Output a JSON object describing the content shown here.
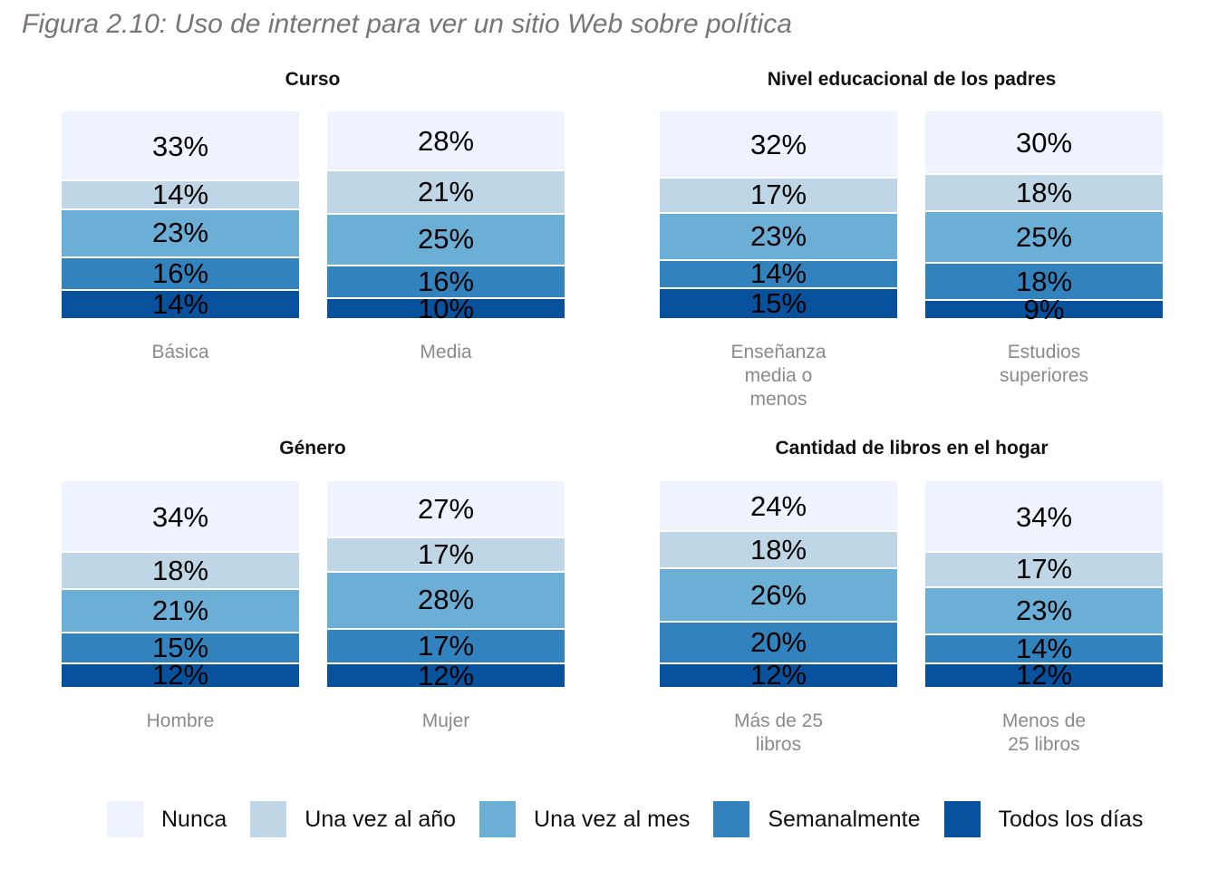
{
  "figure_title": "Figura 2.10: Uso de internet para ver un sitio Web sobre política",
  "legend": [
    {
      "label": "Nunca",
      "color": "#eef3fe"
    },
    {
      "label": "Una vez al año",
      "color": "#bfd6e6"
    },
    {
      "label": "Una vez al mes",
      "color": "#6baed6"
    },
    {
      "label": "Semanalmente",
      "color": "#3182bd"
    },
    {
      "label": "Todos los días",
      "color": "#08519c"
    }
  ],
  "chart_data": [
    {
      "type": "bar",
      "title": "Curso",
      "stacked": true,
      "categories": [
        "Básica",
        "Media"
      ],
      "series": [
        {
          "name": "Nunca",
          "values": [
            33,
            28
          ]
        },
        {
          "name": "Una vez al año",
          "values": [
            14,
            21
          ]
        },
        {
          "name": "Una vez al mes",
          "values": [
            23,
            25
          ]
        },
        {
          "name": "Semanalmente",
          "values": [
            16,
            16
          ]
        },
        {
          "name": "Todos los días",
          "values": [
            14,
            10
          ]
        }
      ]
    },
    {
      "type": "bar",
      "title": "Nivel educacional de los padres",
      "stacked": true,
      "categories": [
        "Enseñanza media o menos",
        "Estudios superiores"
      ],
      "series": [
        {
          "name": "Nunca",
          "values": [
            32,
            30
          ]
        },
        {
          "name": "Una vez al año",
          "values": [
            17,
            18
          ]
        },
        {
          "name": "Una vez al mes",
          "values": [
            23,
            25
          ]
        },
        {
          "name": "Semanalmente",
          "values": [
            14,
            18
          ]
        },
        {
          "name": "Todos los días",
          "values": [
            15,
            9
          ]
        }
      ]
    },
    {
      "type": "bar",
      "title": "Género",
      "stacked": true,
      "categories": [
        "Hombre",
        "Mujer"
      ],
      "series": [
        {
          "name": "Nunca",
          "values": [
            34,
            27
          ]
        },
        {
          "name": "Una vez al año",
          "values": [
            18,
            17
          ]
        },
        {
          "name": "Una vez al mes",
          "values": [
            21,
            28
          ]
        },
        {
          "name": "Semanalmente",
          "values": [
            15,
            17
          ]
        },
        {
          "name": "Todos los días",
          "values": [
            12,
            12
          ]
        }
      ]
    },
    {
      "type": "bar",
      "title": "Cantidad de libros en el hogar",
      "stacked": true,
      "categories": [
        "Más de 25 libros",
        "Menos de 25 libros"
      ],
      "series": [
        {
          "name": "Nunca",
          "values": [
            24,
            34
          ]
        },
        {
          "name": "Una vez al año",
          "values": [
            18,
            17
          ]
        },
        {
          "name": "Una vez al mes",
          "values": [
            26,
            23
          ]
        },
        {
          "name": "Semanalmente",
          "values": [
            20,
            14
          ]
        },
        {
          "name": "Todos los días",
          "values": [
            12,
            12
          ]
        }
      ]
    }
  ]
}
